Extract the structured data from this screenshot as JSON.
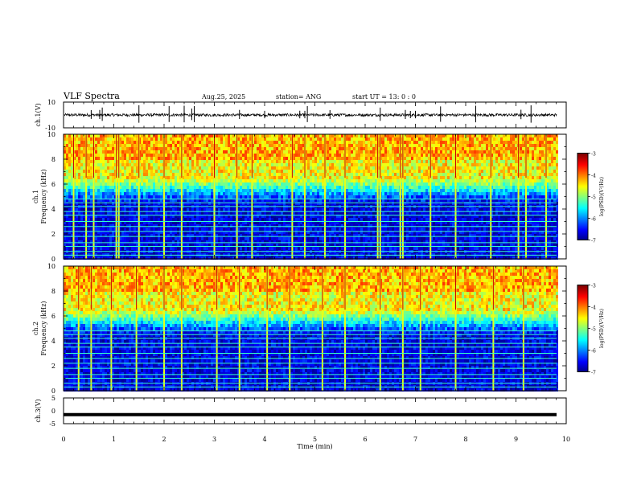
{
  "header": {
    "title": "VLF Spectra",
    "date": "Aug.25, 2025",
    "station": "station= ANG",
    "start": "start  UT  =   13: 0   : 0"
  },
  "chart_data": [
    {
      "type": "line",
      "id": "ch1-waveform",
      "ylabel": "ch.1(V)",
      "ylim": [
        -10,
        10
      ],
      "yticks": [
        "10",
        "-10"
      ],
      "xlim": [
        0,
        10
      ],
      "baseline_value": 0,
      "spike_times_min": [
        0.55,
        0.72,
        0.77,
        1.5,
        2.1,
        2.4,
        2.55,
        2.6,
        3.5,
        4.0,
        4.7,
        4.8,
        4.85,
        5.3,
        6.3,
        6.8,
        6.9,
        7.0,
        7.5,
        8.2,
        9.1,
        9.3
      ]
    },
    {
      "type": "heatmap",
      "id": "ch1-spectrogram",
      "ylabel": "ch.1",
      "ylabel2": "Frequency (kHz)",
      "ylim": [
        0,
        10
      ],
      "yticks": [
        "0",
        "2",
        "4",
        "6",
        "8",
        "10"
      ],
      "xlim": [
        0,
        10
      ],
      "colorbar": {
        "ticks": [
          "-3",
          "-4",
          "-5",
          "-6",
          "-7"
        ],
        "label": "log(PSD)(V²/Hz)",
        "range": [
          -7,
          -3
        ]
      },
      "noise_floor_log": -6.6,
      "upper_band_log": -4.5,
      "band_edge_khz": 6.2,
      "tone_lines_khz": [
        0.3,
        0.6,
        1.0,
        1.3,
        1.8,
        2.2,
        2.6,
        3.0,
        3.5,
        3.8,
        4.2,
        4.5,
        4.8
      ],
      "impulse_times_min": [
        0.2,
        0.45,
        0.6,
        1.05,
        1.1,
        1.5,
        2.0,
        2.35,
        3.0,
        3.45,
        3.75,
        4.55,
        4.8,
        5.2,
        5.6,
        6.25,
        6.3,
        6.7,
        6.75,
        7.3,
        7.8,
        8.5,
        9.05,
        9.2,
        9.6
      ]
    },
    {
      "type": "heatmap",
      "id": "ch2-spectrogram",
      "ylabel": "ch.2",
      "ylabel2": "Frequency (kHz)",
      "ylim": [
        0,
        10
      ],
      "yticks": [
        "0",
        "2",
        "4",
        "6",
        "8",
        "10"
      ],
      "xlim": [
        0,
        10
      ],
      "colorbar": {
        "ticks": [
          "-3",
          "-4",
          "-5",
          "-6",
          "-7"
        ],
        "label": "log(PSD)(V²/Hz)",
        "range": [
          -7,
          -3
        ]
      },
      "noise_floor_log": -6.6,
      "upper_band_log": -4.5,
      "band_edge_khz": 6.2,
      "tone_lines_khz": [
        0.3,
        0.6,
        1.0,
        1.3,
        1.8,
        2.2,
        2.6,
        3.0,
        3.5,
        3.8,
        4.2,
        4.5,
        4.8
      ],
      "impulse_times_min": [
        0.3,
        0.55,
        0.95,
        1.45,
        2.0,
        2.35,
        3.05,
        3.5,
        4.05,
        4.5,
        5.15,
        5.6,
        6.3,
        6.75,
        7.1,
        7.8,
        8.55,
        9.15
      ]
    },
    {
      "type": "line",
      "id": "ch3-waveform",
      "ylabel": "ch.3(V)",
      "ylim": [
        -5,
        5
      ],
      "yticks": [
        "5",
        "0",
        "-5"
      ],
      "xlim": [
        0,
        10
      ],
      "constant_value": -1.5
    }
  ],
  "xaxis": {
    "label": "Time  (min)",
    "ticks": [
      "0",
      "1",
      "2",
      "3",
      "4",
      "5",
      "6",
      "7",
      "8",
      "9",
      "10"
    ]
  }
}
